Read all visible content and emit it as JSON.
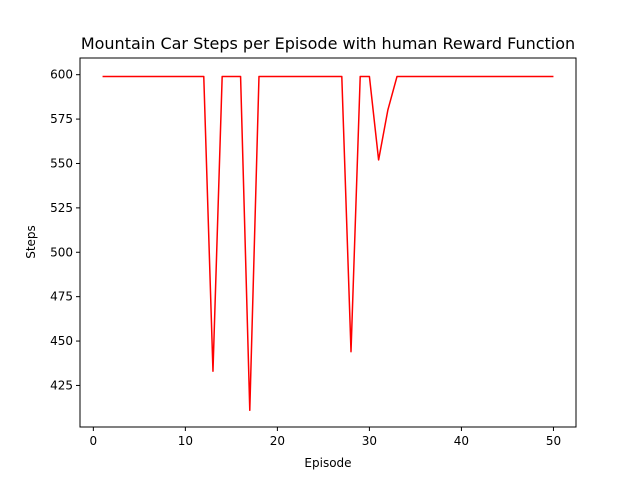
{
  "chart_data": {
    "type": "line",
    "title": "Mountain Car Steps per Episode with human Reward Function",
    "xlabel": "Episode",
    "ylabel": "Steps",
    "xlim": [
      -1.45,
      52.45
    ],
    "ylim": [
      401.6,
      609.4
    ],
    "xticks": [
      0,
      10,
      20,
      30,
      40,
      50
    ],
    "yticks": [
      425,
      450,
      475,
      500,
      525,
      550,
      575,
      600
    ],
    "grid": false,
    "series": [
      {
        "color": "#ff0000",
        "x": [
          1,
          2,
          3,
          4,
          5,
          6,
          7,
          8,
          9,
          10,
          11,
          12,
          13,
          14,
          15,
          16,
          17,
          18,
          19,
          20,
          21,
          22,
          23,
          24,
          25,
          26,
          27,
          28,
          29,
          30,
          31,
          32,
          33,
          34,
          35,
          36,
          37,
          38,
          39,
          40,
          41,
          42,
          43,
          44,
          45,
          46,
          47,
          48,
          49,
          50
        ],
        "values": [
          599,
          599,
          599,
          599,
          599,
          599,
          599,
          599,
          599,
          599,
          599,
          599,
          433,
          599,
          599,
          599,
          411,
          599,
          599,
          599,
          599,
          599,
          599,
          599,
          599,
          599,
          599,
          444,
          599,
          599,
          552,
          580,
          599,
          599,
          599,
          599,
          599,
          599,
          599,
          599,
          599,
          599,
          599,
          599,
          599,
          599,
          599,
          599,
          599,
          599
        ]
      }
    ]
  }
}
